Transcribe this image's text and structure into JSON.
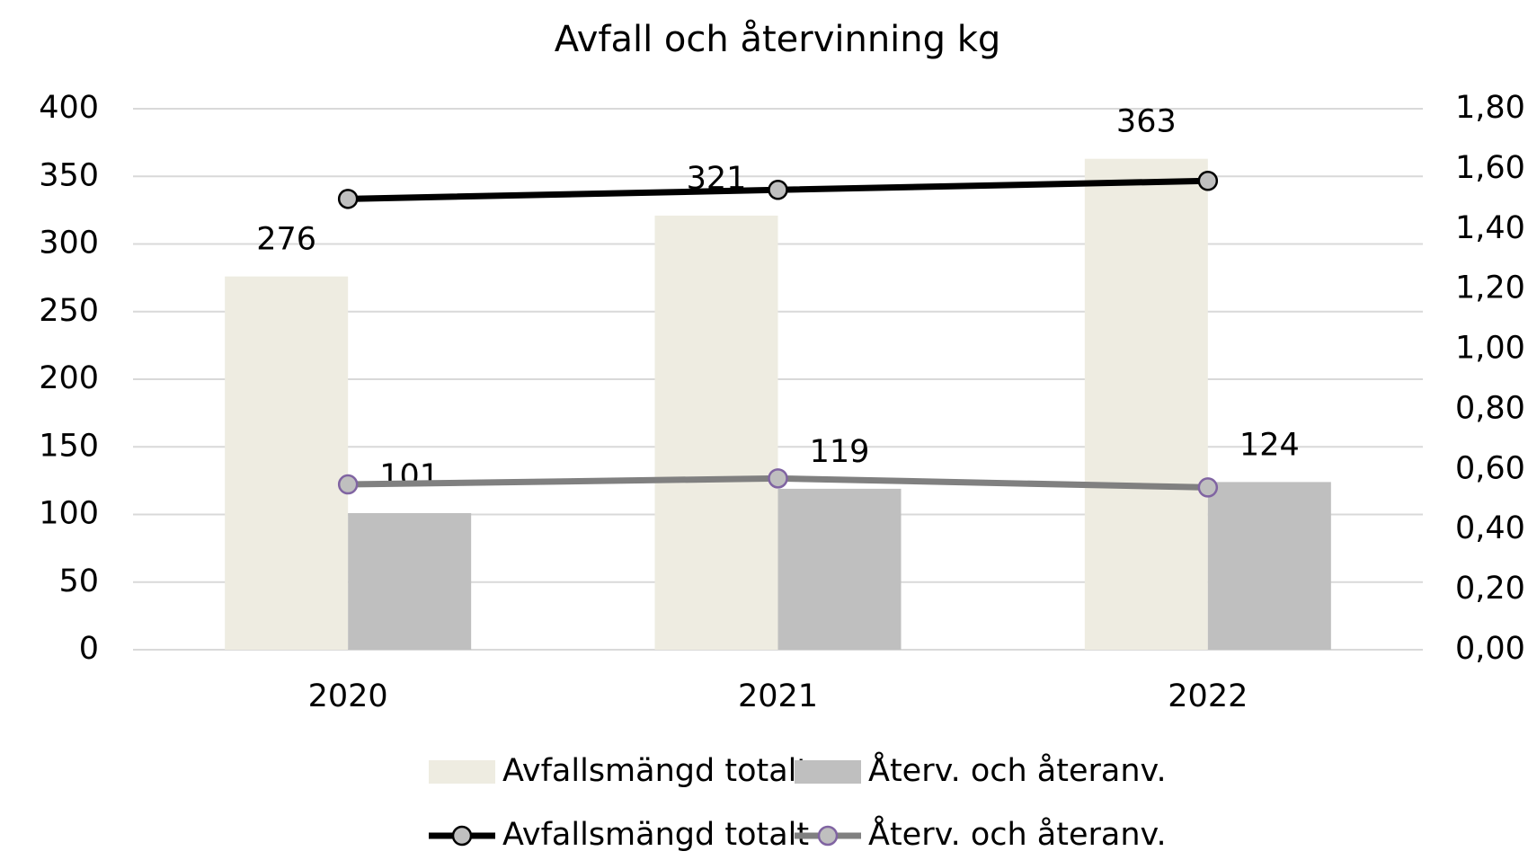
{
  "chart_data": {
    "type": "bar",
    "title": "Avfall och återvinning kg",
    "categories": [
      "2020",
      "2021",
      "2022"
    ],
    "series": [
      {
        "name": "Avfallsmängd totalt",
        "type": "bar",
        "color": "#eeece1",
        "values": [
          276,
          321,
          363
        ]
      },
      {
        "name": "Återv. och återanv.",
        "type": "bar",
        "color": "#bfbfbf",
        "values": [
          101,
          119,
          124
        ]
      },
      {
        "name": "Avfallsmängd totalt",
        "type": "line",
        "axis": "y2",
        "color": "#000000",
        "marker_color": "#bfbfbf",
        "marker_edge": "#000000",
        "values": [
          1.5,
          1.53,
          1.56
        ]
      },
      {
        "name": "Återv. och återanv.",
        "type": "line",
        "axis": "y2",
        "color": "#808080",
        "marker_color": "#bfbfbf",
        "marker_edge": "#8064a2",
        "values": [
          0.55,
          0.57,
          0.54
        ]
      }
    ],
    "ylim": [
      0,
      400
    ],
    "yticks": [
      0,
      50,
      100,
      150,
      200,
      250,
      300,
      350,
      400
    ],
    "y2lim": [
      0,
      1.8
    ],
    "y2ticks": [
      {
        "value": 0,
        "label": "0,00"
      },
      {
        "value": 0.2,
        "label": "0,20"
      },
      {
        "value": 0.4,
        "label": "0,40"
      },
      {
        "value": 0.6,
        "label": "0,60"
      },
      {
        "value": 0.8,
        "label": "0,80"
      },
      {
        "value": 1.0,
        "label": "1,00"
      },
      {
        "value": 1.2,
        "label": "1,20"
      },
      {
        "value": 1.4,
        "label": "1,40"
      },
      {
        "value": 1.6,
        "label": "1,60"
      },
      {
        "value": 1.8,
        "label": "1,80"
      }
    ],
    "grid": true,
    "legend": "bottom"
  }
}
